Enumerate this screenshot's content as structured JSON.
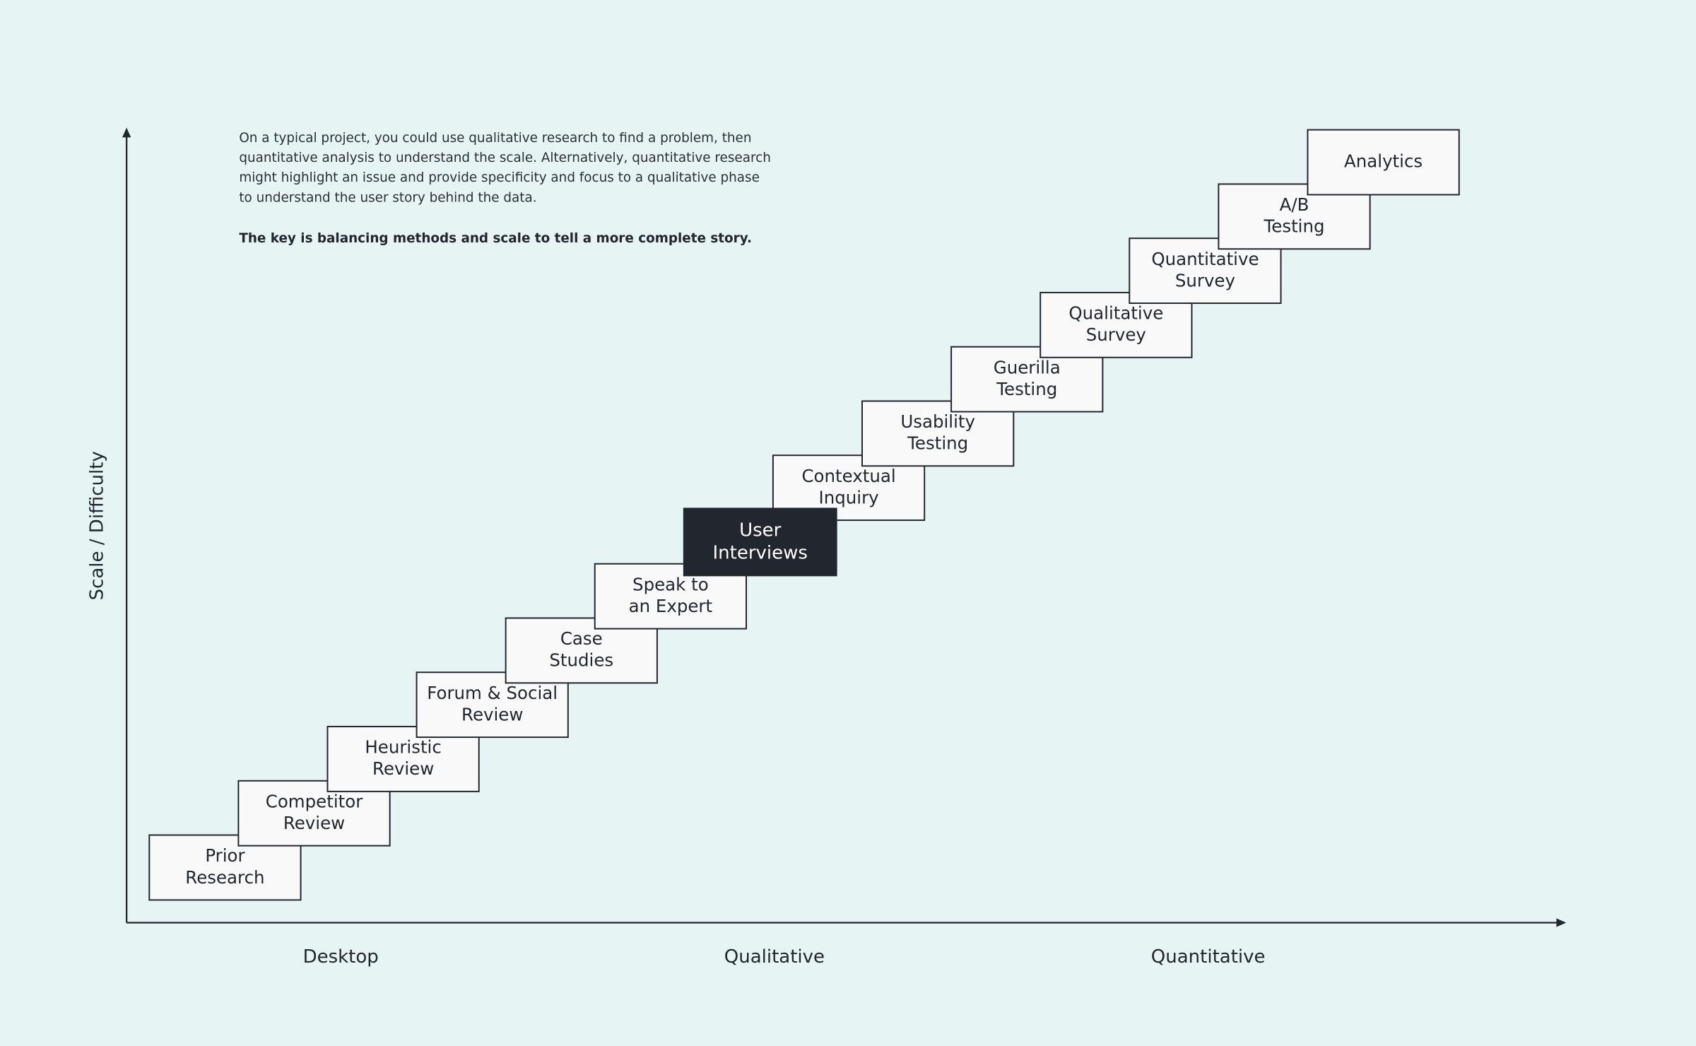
{
  "description": {
    "lines": [
      "On a typical project, you could use qualitative research to find a problem, then",
      "quantitative analysis to understand the scale. Alternatively, quantitative research",
      "might highlight an issue and provide specificity and focus to a qualitative phase",
      "to understand the user story behind the data."
    ],
    "key": "The key is balancing methods and scale to tell a more complete story."
  },
  "y_axis_label": "Scale / Difficulty",
  "x_axis_labels": [
    "Desktop",
    "Qualitative",
    "Quantitative"
  ],
  "steps": [
    {
      "lines": [
        "Prior",
        "Research"
      ]
    },
    {
      "lines": [
        "Competitor",
        "Review"
      ]
    },
    {
      "lines": [
        "Heuristic",
        "Review"
      ]
    },
    {
      "lines": [
        "Forum & Social",
        "Review"
      ]
    },
    {
      "lines": [
        "Case",
        "Studies"
      ]
    },
    {
      "lines": [
        "Speak to",
        "an Expert"
      ]
    },
    {
      "lines": [
        "User",
        "Interviews"
      ],
      "highlighted": true
    },
    {
      "lines": [
        "Contextual",
        "Inquiry"
      ]
    },
    {
      "lines": [
        "Usability",
        "Testing"
      ]
    },
    {
      "lines": [
        "Guerilla",
        "Testing"
      ]
    },
    {
      "lines": [
        "Qualitative",
        "Survey"
      ]
    },
    {
      "lines": [
        "Quantitative",
        "Survey"
      ]
    },
    {
      "lines": [
        "A/B",
        "Testing"
      ]
    },
    {
      "lines": [
        "Analytics"
      ]
    }
  ]
}
